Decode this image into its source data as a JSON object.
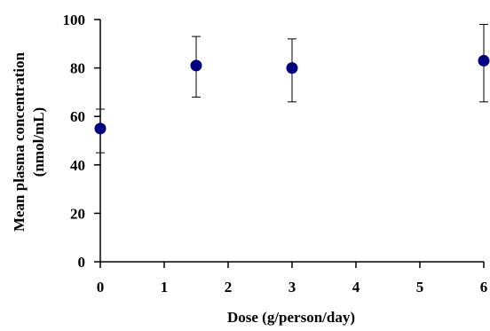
{
  "chart_data": {
    "type": "scatter",
    "title": "",
    "xlabel": "Dose (g/person/day)",
    "ylabel_lines": [
      "Mean plasma concentration",
      "(nmol/mL)"
    ],
    "xlim": [
      0,
      6
    ],
    "ylim": [
      0,
      100
    ],
    "x_ticks": [
      0,
      1,
      2,
      3,
      4,
      5,
      6
    ],
    "y_ticks": [
      0,
      20,
      40,
      60,
      80,
      100
    ],
    "grid": false,
    "legend": "none",
    "marker_color": "#000080",
    "points": [
      {
        "x": 0,
        "y": 55,
        "err_low": 45,
        "err_high": 63
      },
      {
        "x": 1.5,
        "y": 81,
        "err_low": 68,
        "err_high": 93
      },
      {
        "x": 3,
        "y": 80,
        "err_low": 66,
        "err_high": 92
      },
      {
        "x": 6,
        "y": 83,
        "err_low": 66,
        "err_high": 98
      }
    ]
  }
}
